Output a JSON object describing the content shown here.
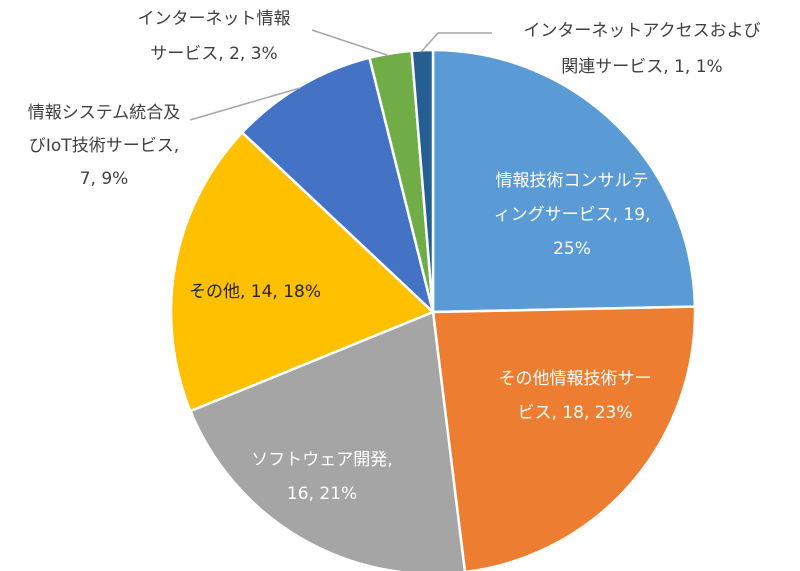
{
  "chart_data": {
    "type": "pie",
    "title": "",
    "start_angle_deg": 0,
    "direction": "clockwise",
    "slices": [
      {
        "name": "情報技術コンサルティングサービス",
        "value": 19,
        "percent": 25,
        "color": "#5B9BD5",
        "label_lines": [
          "情報技術コンサルテ",
          "ィングサービス, 19,",
          "25%"
        ],
        "label_style": "inside-light"
      },
      {
        "name": "その他情報技術サービス",
        "value": 18,
        "percent": 23,
        "color": "#ED7D31",
        "label_lines": [
          "その他情報技術サー",
          "ビス, 18, 23%"
        ],
        "label_style": "inside-light"
      },
      {
        "name": "ソフトウェア開発",
        "value": 16,
        "percent": 21,
        "color": "#A5A5A5",
        "label_lines": [
          "ソフトウェア開発,",
          "16, 21%"
        ],
        "label_style": "inside-light"
      },
      {
        "name": "その他",
        "value": 14,
        "percent": 18,
        "color": "#FFC000",
        "label_lines": [
          "その他, 14, 18%"
        ],
        "label_style": "inside-dark"
      },
      {
        "name": "情報システム統合及びIoT技術サービス",
        "value": 7,
        "percent": 9,
        "color": "#4472C4",
        "label_lines": [
          "情報システム統合及",
          "びIoT技術サービス,",
          "7, 9%"
        ],
        "label_style": "outside"
      },
      {
        "name": "インターネット情報サービス",
        "value": 2,
        "percent": 3,
        "color": "#70AD47",
        "label_lines": [
          "インターネット情報",
          "サービス, 2, 3%"
        ],
        "label_style": "outside"
      },
      {
        "name": "インターネットアクセスおよび関連サービス",
        "value": 1,
        "percent": 1,
        "color": "#255E91",
        "label_lines": [
          "インターネットアクセスおよび",
          "関連サービス, 1, 1%"
        ],
        "label_style": "outside"
      }
    ]
  }
}
